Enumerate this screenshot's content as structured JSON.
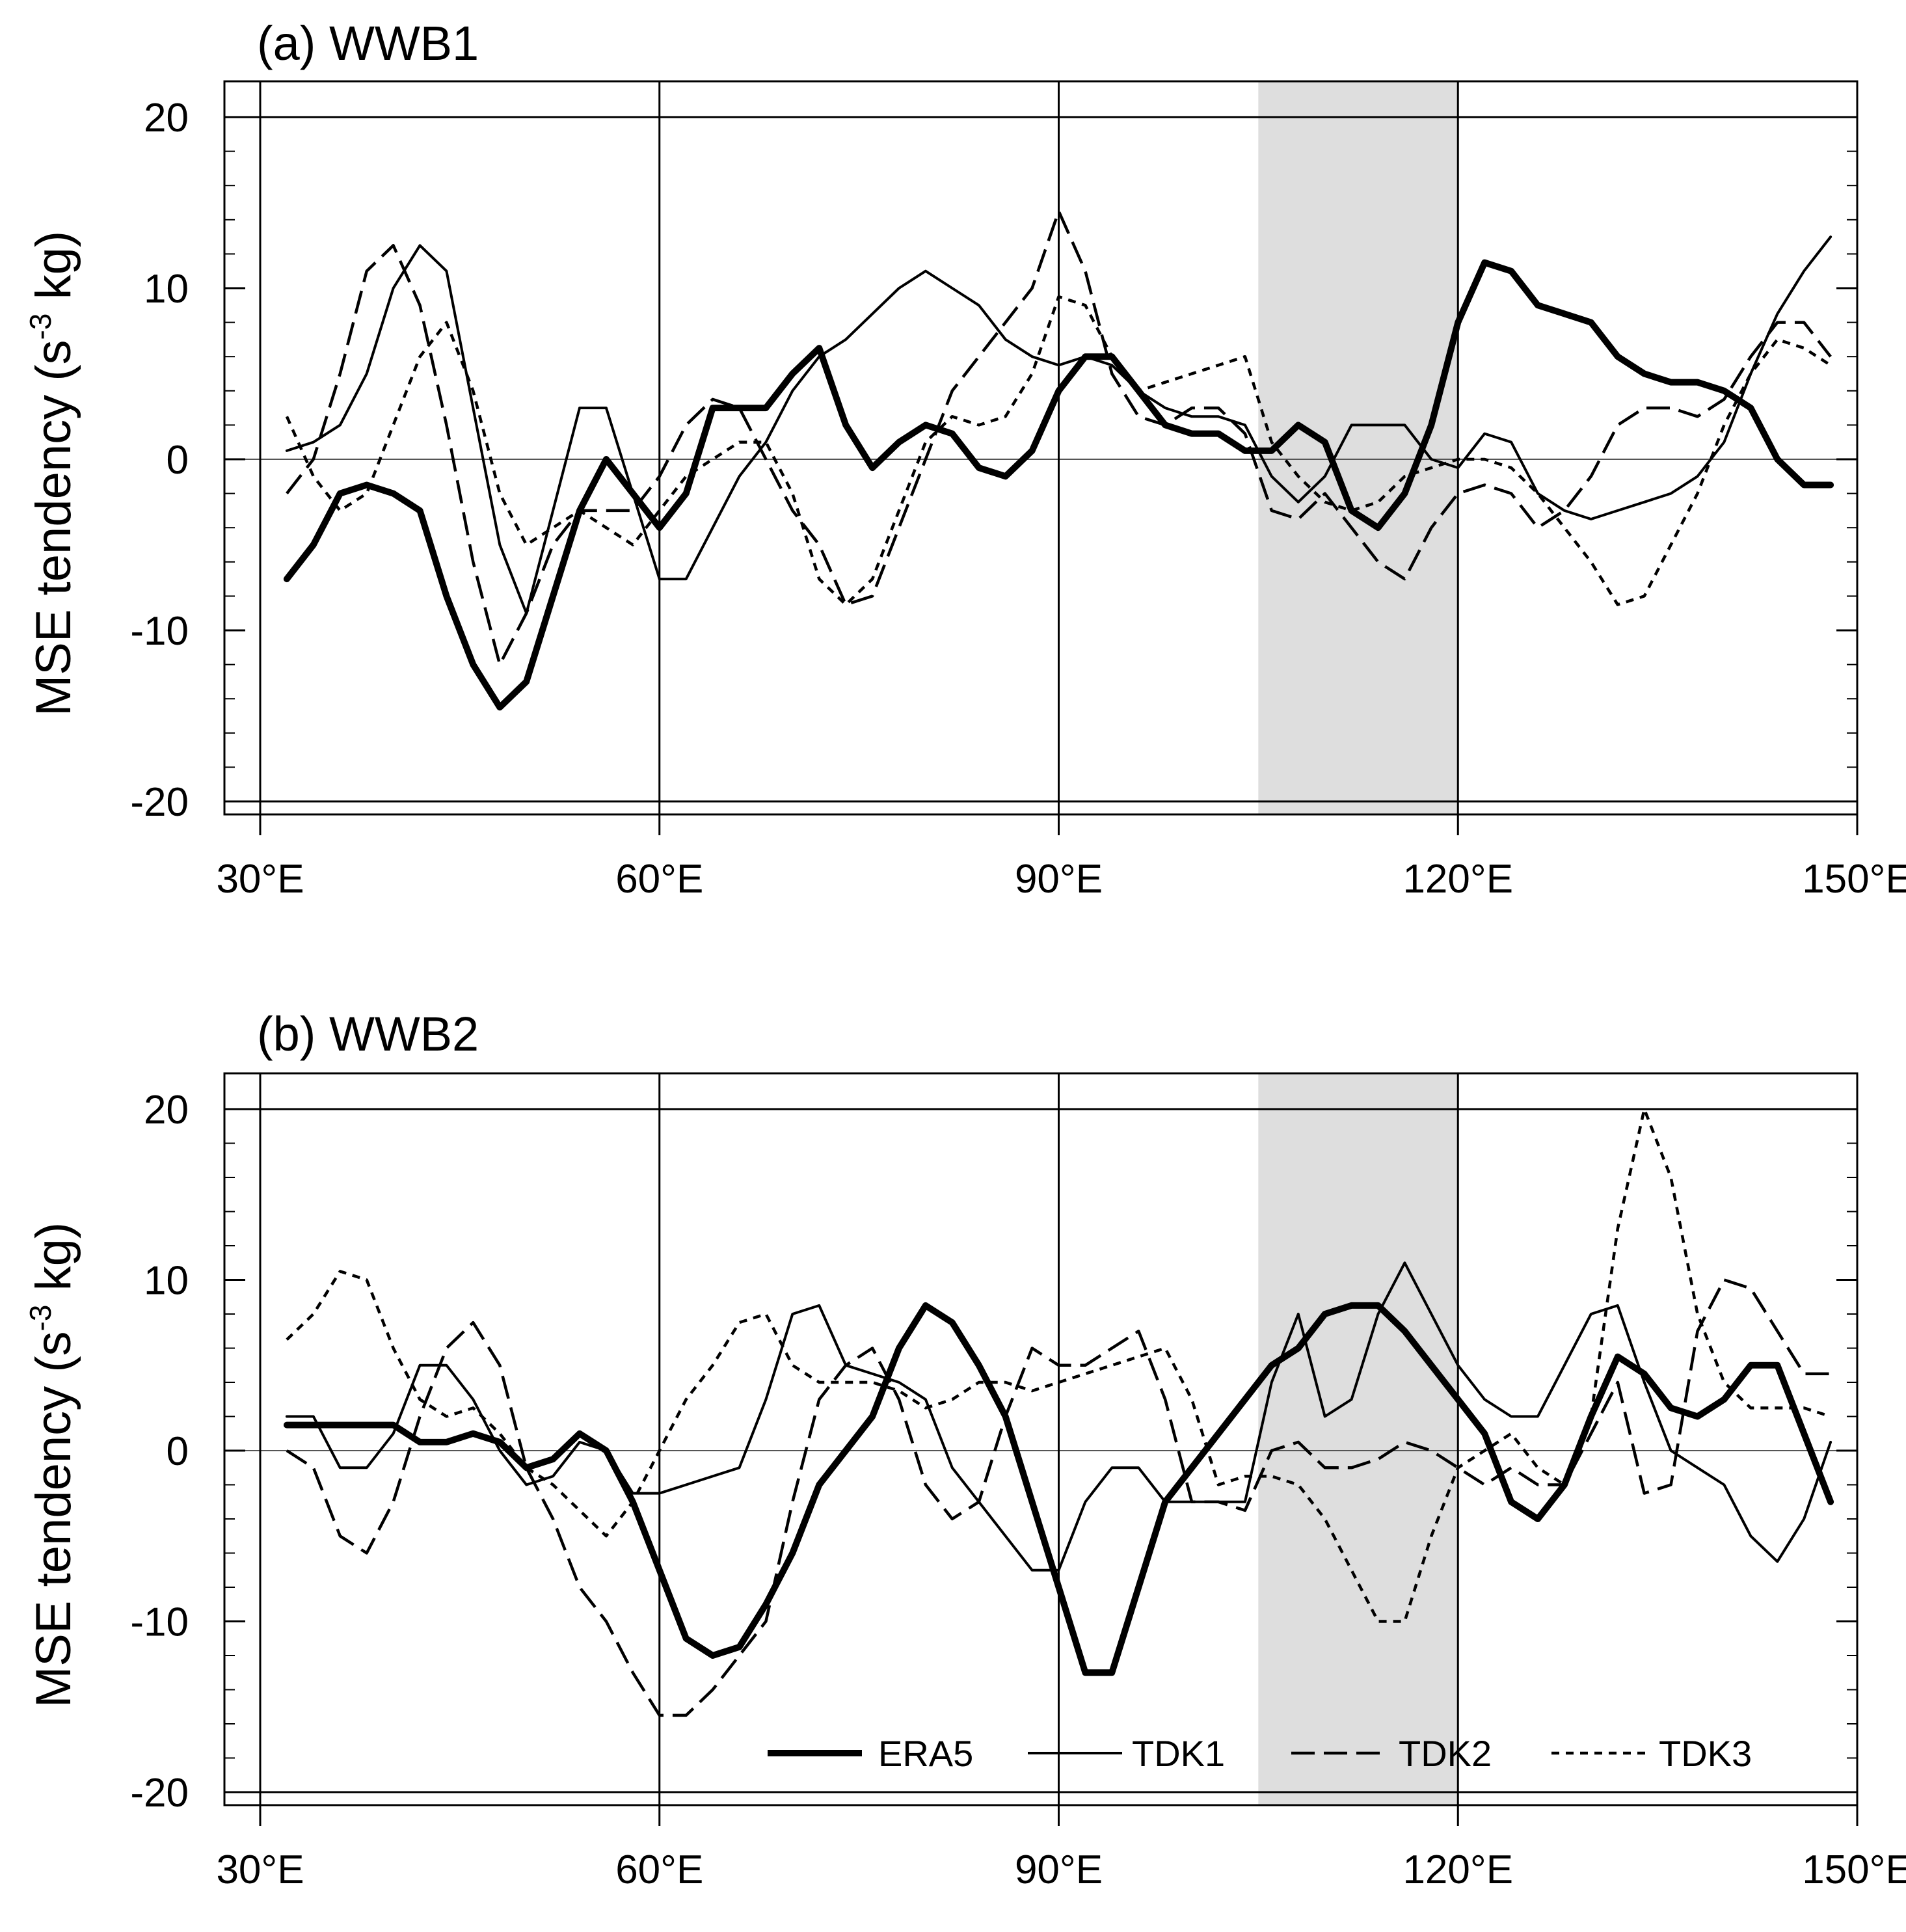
{
  "chart_data": [
    {
      "panel": "a",
      "type": "line",
      "title": "(a) WWB1",
      "xlabel": "",
      "ylabel": "MSE tendency",
      "ylabel_units": "(s-3 kg)",
      "xlim": [
        30,
        150
      ],
      "ylim": [
        -20,
        20
      ],
      "x_ticks": [
        30,
        60,
        90,
        120,
        150
      ],
      "x_tick_labels": [
        "30°E",
        "60°E",
        "90°E",
        "120°E",
        "150°E"
      ],
      "y_ticks": [
        -20,
        -10,
        0,
        10,
        20
      ],
      "y_tick_labels": [
        "-20",
        "-10",
        "0",
        "10",
        "20"
      ],
      "shaded_region": [
        105,
        120
      ],
      "series": [
        {
          "name": "ERA5",
          "style": "thick-solid",
          "x": [
            32,
            34,
            36,
            38,
            40,
            42,
            44,
            46,
            48,
            50,
            52,
            54,
            56,
            58,
            60,
            62,
            64,
            66,
            68,
            70,
            72,
            74,
            76,
            78,
            80,
            82,
            84,
            86,
            88,
            90,
            92,
            94,
            96,
            98,
            100,
            102,
            104,
            106,
            108,
            110,
            112,
            114,
            116,
            118,
            120,
            122,
            124,
            126,
            128,
            130,
            132,
            134,
            136,
            138,
            140,
            142,
            144,
            146,
            148
          ],
          "y": [
            -7,
            -5,
            -2,
            -1.5,
            -2,
            -3,
            -8,
            -12,
            -14.5,
            -13,
            -8,
            -3,
            0,
            -2,
            -4,
            -2,
            3,
            3,
            3,
            5,
            6.5,
            2,
            -0.5,
            1,
            2,
            1.5,
            -0.5,
            -1,
            0.5,
            4,
            6,
            6,
            4,
            2,
            1.5,
            1.5,
            0.5,
            0.5,
            2,
            1,
            -3,
            -4,
            -2,
            2,
            8,
            11.5,
            11,
            9,
            8.5,
            8,
            6,
            5,
            4.5,
            4.5,
            4,
            3,
            0,
            -1.5,
            -1.5
          ]
        },
        {
          "name": "TDK1",
          "style": "thin-solid",
          "x": [
            32,
            34,
            36,
            38,
            40,
            42,
            44,
            46,
            48,
            50,
            52,
            54,
            56,
            58,
            60,
            62,
            64,
            66,
            68,
            70,
            72,
            74,
            76,
            78,
            80,
            82,
            84,
            86,
            88,
            90,
            92,
            94,
            96,
            98,
            100,
            102,
            104,
            106,
            108,
            110,
            112,
            114,
            116,
            118,
            120,
            122,
            124,
            126,
            128,
            130,
            132,
            134,
            136,
            138,
            140,
            142,
            144,
            146,
            148
          ],
          "y": [
            0.5,
            1,
            2,
            5,
            10,
            12.5,
            11,
            3,
            -5,
            -9,
            -3,
            3,
            3,
            -2,
            -7,
            -7,
            -4,
            -1,
            1,
            4,
            6,
            7,
            8.5,
            10,
            11,
            10,
            9,
            7,
            6,
            5.5,
            6,
            5.5,
            4,
            3,
            2.5,
            2.5,
            2,
            -1,
            -2.5,
            -1,
            2,
            2,
            2,
            0,
            -0.5,
            1.5,
            1,
            -2,
            -3,
            -3.5,
            -3,
            -2.5,
            -2,
            -1,
            1,
            5,
            8.5,
            11,
            13
          ]
        },
        {
          "name": "TDK2",
          "style": "long-dash",
          "x": [
            32,
            34,
            36,
            38,
            40,
            42,
            44,
            46,
            48,
            50,
            52,
            54,
            56,
            58,
            60,
            62,
            64,
            66,
            68,
            70,
            72,
            74,
            76,
            78,
            80,
            82,
            84,
            86,
            88,
            90,
            92,
            94,
            96,
            98,
            100,
            102,
            104,
            106,
            108,
            110,
            112,
            114,
            116,
            118,
            120,
            122,
            124,
            126,
            128,
            130,
            132,
            134,
            136,
            138,
            140,
            142,
            144,
            146,
            148
          ],
          "y": [
            -2,
            0,
            5,
            11,
            12.5,
            9,
            2,
            -6,
            -12,
            -9,
            -5,
            -3,
            -3,
            -3,
            -1,
            2,
            3.5,
            3,
            0,
            -3,
            -5,
            -8.5,
            -8,
            -4,
            0,
            4,
            6,
            8,
            10,
            14.5,
            11,
            5,
            2.5,
            2,
            3,
            3,
            1.5,
            -3,
            -3.5,
            -2,
            -4,
            -6,
            -7,
            -4,
            -2,
            -1.5,
            -2,
            -4,
            -3,
            -1,
            2,
            3,
            3,
            2.5,
            3.5,
            6,
            8,
            8,
            6
          ]
        },
        {
          "name": "TDK3",
          "style": "short-dash",
          "x": [
            32,
            34,
            36,
            38,
            40,
            42,
            44,
            46,
            48,
            50,
            52,
            54,
            56,
            58,
            60,
            62,
            64,
            66,
            68,
            70,
            72,
            74,
            76,
            78,
            80,
            82,
            84,
            86,
            88,
            90,
            92,
            94,
            96,
            98,
            100,
            102,
            104,
            106,
            108,
            110,
            112,
            114,
            116,
            118,
            120,
            122,
            124,
            126,
            128,
            130,
            132,
            134,
            136,
            138,
            140,
            142,
            144,
            146,
            148
          ],
          "y": [
            2.5,
            -1,
            -3,
            -2,
            2,
            6,
            8,
            4,
            -2,
            -5,
            -4,
            -3,
            -4,
            -5,
            -3,
            -1,
            0,
            1,
            1,
            -2,
            -7,
            -8.5,
            -7,
            -3,
            1,
            2.5,
            2,
            2.5,
            5,
            9.5,
            9,
            6,
            4,
            4.5,
            5,
            5.5,
            6,
            1,
            -1,
            -2.5,
            -3,
            -2.5,
            -1,
            -0.5,
            0,
            0,
            -0.5,
            -2,
            -4,
            -6,
            -8.5,
            -8,
            -5,
            -2,
            2,
            5,
            7,
            6.5,
            5.5
          ]
        }
      ]
    },
    {
      "panel": "b",
      "type": "line",
      "title": "(b) WWB2",
      "xlabel": "",
      "ylabel": "MSE tendency",
      "ylabel_units": "(s-3 kg)",
      "xlim": [
        30,
        150
      ],
      "ylim": [
        -20,
        20
      ],
      "x_ticks": [
        30,
        60,
        90,
        120,
        150
      ],
      "x_tick_labels": [
        "30°E",
        "60°E",
        "90°E",
        "120°E",
        "150°E"
      ],
      "y_ticks": [
        -20,
        -10,
        0,
        10,
        20
      ],
      "y_tick_labels": [
        "-20",
        "-10",
        "0",
        "10",
        "20"
      ],
      "shaded_region": [
        105,
        120
      ],
      "legend_position": "bottom-right",
      "series": [
        {
          "name": "ERA5",
          "style": "thick-solid",
          "x": [
            32,
            34,
            36,
            38,
            40,
            42,
            44,
            46,
            48,
            50,
            52,
            54,
            56,
            58,
            60,
            62,
            64,
            66,
            68,
            70,
            72,
            74,
            76,
            78,
            80,
            82,
            84,
            86,
            88,
            90,
            92,
            94,
            96,
            98,
            100,
            102,
            104,
            106,
            108,
            110,
            112,
            114,
            116,
            118,
            120,
            122,
            124,
            126,
            128,
            130,
            132,
            134,
            136,
            138,
            140,
            142,
            144,
            146,
            148
          ],
          "y": [
            1.5,
            1.5,
            1.5,
            1.5,
            1.5,
            0.5,
            0.5,
            1,
            0.5,
            -1,
            -0.5,
            1,
            0,
            -3,
            -7,
            -11,
            -12,
            -11.5,
            -9,
            -6,
            -2,
            0,
            2,
            6,
            8.5,
            7.5,
            5,
            2,
            -3,
            -8,
            -13,
            -13,
            -8,
            -3,
            -1,
            1,
            3,
            5,
            6,
            8,
            8.5,
            8.5,
            7,
            5,
            3,
            1,
            -3,
            -4,
            -2,
            2,
            5.5,
            4.5,
            2.5,
            2,
            3,
            5,
            5,
            1,
            -3
          ]
        },
        {
          "name": "TDK1",
          "style": "thin-solid",
          "x": [
            32,
            34,
            36,
            38,
            40,
            42,
            44,
            46,
            48,
            50,
            52,
            54,
            56,
            58,
            60,
            62,
            64,
            66,
            68,
            70,
            72,
            74,
            76,
            78,
            80,
            82,
            84,
            86,
            88,
            90,
            92,
            94,
            96,
            98,
            100,
            102,
            104,
            106,
            108,
            110,
            112,
            114,
            116,
            118,
            120,
            122,
            124,
            126,
            128,
            130,
            132,
            134,
            136,
            138,
            140,
            142,
            144,
            146,
            148
          ],
          "y": [
            2,
            2,
            -1,
            -1,
            1,
            5,
            5,
            3,
            0,
            -2,
            -1.5,
            0.5,
            0,
            -2.5,
            -2.5,
            -2,
            -1.5,
            -1,
            3,
            8,
            8.5,
            5,
            4.5,
            4,
            3,
            -1,
            -3,
            -5,
            -7,
            -7,
            -3,
            -1,
            -1,
            -3,
            -3,
            -3,
            -3,
            4,
            8,
            2,
            3,
            8,
            11,
            8,
            5,
            3,
            2,
            2,
            5,
            8,
            8.5,
            4,
            0,
            -1,
            -2,
            -5,
            -6.5,
            -4,
            0.5
          ]
        },
        {
          "name": "TDK2",
          "style": "long-dash",
          "x": [
            32,
            34,
            36,
            38,
            40,
            42,
            44,
            46,
            48,
            50,
            52,
            54,
            56,
            58,
            60,
            62,
            64,
            66,
            68,
            70,
            72,
            74,
            76,
            78,
            80,
            82,
            84,
            86,
            88,
            90,
            92,
            94,
            96,
            98,
            100,
            102,
            104,
            106,
            108,
            110,
            112,
            114,
            116,
            118,
            120,
            122,
            124,
            126,
            128,
            130,
            132,
            134,
            136,
            138,
            140,
            142,
            144,
            146,
            148
          ],
          "y": [
            0,
            -1,
            -5,
            -6,
            -3,
            2,
            6,
            7.5,
            5,
            -1,
            -4,
            -8,
            -10,
            -13,
            -15.5,
            -15.5,
            -14,
            -12,
            -10,
            -3,
            3,
            5,
            6,
            3,
            -2,
            -4,
            -3,
            2,
            6,
            5,
            5,
            6,
            7,
            3,
            -3,
            -3,
            -3.5,
            0,
            0.5,
            -1,
            -1,
            -0.5,
            0.5,
            0,
            -1,
            -2,
            -1,
            -2,
            -2,
            1,
            4,
            -2.5,
            -2,
            7,
            10,
            9.5,
            7,
            4.5,
            4.5
          ]
        },
        {
          "name": "TDK3",
          "style": "short-dash",
          "x": [
            32,
            34,
            36,
            38,
            40,
            42,
            44,
            46,
            48,
            50,
            52,
            54,
            56,
            58,
            60,
            62,
            64,
            66,
            68,
            70,
            72,
            74,
            76,
            78,
            80,
            82,
            84,
            86,
            88,
            90,
            92,
            94,
            96,
            98,
            100,
            102,
            104,
            106,
            108,
            110,
            112,
            114,
            116,
            118,
            120,
            122,
            124,
            126,
            128,
            130,
            132,
            134,
            136,
            138,
            140,
            142,
            144,
            146,
            148
          ],
          "y": [
            6.5,
            8,
            10.5,
            10,
            6,
            3,
            2,
            2.5,
            1,
            -1,
            -2,
            -3.5,
            -5,
            -3,
            0,
            3,
            5,
            7.5,
            8,
            5,
            4,
            4,
            4,
            3.5,
            2.5,
            3,
            4,
            4,
            3.5,
            4,
            4.5,
            5,
            5.5,
            6,
            3,
            -2,
            -1.5,
            -1.5,
            -2,
            -4,
            -7,
            -10,
            -10,
            -5,
            -1,
            0,
            1,
            -1,
            -2,
            2,
            13,
            20,
            16,
            8,
            4,
            2.5,
            2.5,
            2.5,
            2
          ]
        }
      ]
    }
  ]
}
